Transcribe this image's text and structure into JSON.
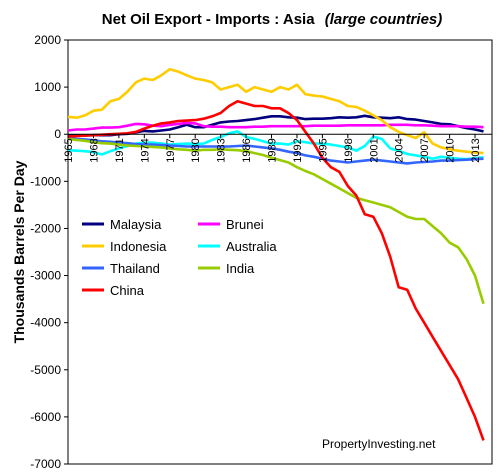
{
  "chart_data": {
    "type": "line",
    "title": "Net Oil Export - Imports : Asia",
    "subtitle": "(large countries)",
    "xlabel": "",
    "ylabel": "Thousands Barrels Per Day",
    "ylim": [
      -7000,
      2000
    ],
    "yticks": [
      2000,
      1000,
      0,
      -1000,
      -2000,
      -3000,
      -4000,
      -5000,
      -6000,
      -7000
    ],
    "xlim": [
      1965,
      2015
    ],
    "xticks": [
      1965,
      1968,
      1971,
      1974,
      1977,
      1980,
      1983,
      1986,
      1989,
      1992,
      1995,
      1998,
      2001,
      2004,
      2007,
      2010,
      2013
    ],
    "grid": false,
    "legend_position": "left, inside plot",
    "annotation": "PropertyInvesting.net",
    "x": [
      1965,
      1966,
      1967,
      1968,
      1969,
      1970,
      1971,
      1972,
      1973,
      1974,
      1975,
      1976,
      1977,
      1978,
      1979,
      1980,
      1981,
      1982,
      1983,
      1984,
      1985,
      1986,
      1987,
      1988,
      1989,
      1990,
      1991,
      1992,
      1993,
      1994,
      1995,
      1996,
      1997,
      1998,
      1999,
      2000,
      2001,
      2002,
      2003,
      2004,
      2005,
      2006,
      2007,
      2008,
      2009,
      2010,
      2011,
      2012,
      2013,
      2014
    ],
    "series": [
      {
        "name": "Malaysia",
        "color": "#00007f",
        "values": [
          -30,
          -30,
          -25,
          -20,
          -20,
          -20,
          0,
          10,
          40,
          70,
          60,
          80,
          100,
          150,
          200,
          150,
          150,
          200,
          250,
          270,
          280,
          300,
          320,
          350,
          380,
          380,
          360,
          350,
          320,
          330,
          330,
          340,
          360,
          350,
          360,
          390,
          360,
          350,
          340,
          360,
          320,
          310,
          280,
          250,
          220,
          210,
          170,
          130,
          100,
          60
        ]
      },
      {
        "name": "Brunei",
        "color": "#ff00ff",
        "values": [
          80,
          100,
          100,
          120,
          140,
          140,
          150,
          180,
          220,
          210,
          180,
          170,
          200,
          220,
          240,
          230,
          170,
          160,
          160,
          150,
          150,
          150,
          160,
          160,
          170,
          170,
          170,
          170,
          170,
          180,
          180,
          180,
          180,
          190,
          190,
          190,
          190,
          190,
          200,
          200,
          200,
          190,
          190,
          180,
          170,
          170,
          170,
          160,
          160,
          150
        ]
      },
      {
        "name": "Indonesia",
        "color": "#ffcc00",
        "values": [
          370,
          350,
          400,
          500,
          520,
          700,
          750,
          900,
          1100,
          1180,
          1150,
          1250,
          1380,
          1330,
          1250,
          1180,
          1150,
          1100,
          950,
          1000,
          1050,
          900,
          1000,
          950,
          900,
          1000,
          950,
          1050,
          850,
          820,
          800,
          750,
          700,
          600,
          580,
          500,
          400,
          300,
          150,
          50,
          -20,
          -80,
          40,
          -200,
          -280,
          -320,
          -350,
          -370,
          -390,
          -400
        ]
      },
      {
        "name": "Australia",
        "color": "#00ffff",
        "values": [
          -340,
          -350,
          -360,
          -380,
          -430,
          -360,
          -300,
          -250,
          -200,
          -180,
          -180,
          -200,
          -220,
          -210,
          -200,
          -210,
          -200,
          -120,
          -60,
          20,
          60,
          -60,
          -100,
          -150,
          -200,
          -200,
          -220,
          -150,
          -170,
          -200,
          -200,
          -220,
          -250,
          -280,
          -350,
          -250,
          -50,
          -100,
          -300,
          -350,
          -420,
          -450,
          -480,
          -520,
          -480,
          -500,
          -520,
          -530,
          -510,
          -490
        ]
      },
      {
        "name": "Thailand",
        "color": "#3366ff",
        "values": [
          -80,
          -100,
          -110,
          -130,
          -150,
          -160,
          -180,
          -190,
          -210,
          -220,
          -220,
          -230,
          -240,
          -250,
          -260,
          -260,
          -260,
          -260,
          -260,
          -260,
          -250,
          -240,
          -260,
          -280,
          -300,
          -330,
          -370,
          -400,
          -450,
          -480,
          -520,
          -560,
          -580,
          -600,
          -580,
          -560,
          -540,
          -560,
          -580,
          -600,
          -620,
          -600,
          -590,
          -580,
          -560,
          -560,
          -550,
          -540,
          -530,
          -520
        ]
      },
      {
        "name": "India",
        "color": "#99cc00",
        "values": [
          -100,
          -120,
          -140,
          -170,
          -190,
          -200,
          -220,
          -240,
          -250,
          -260,
          -270,
          -280,
          -300,
          -320,
          -330,
          -350,
          -330,
          -330,
          -320,
          -330,
          -340,
          -360,
          -400,
          -440,
          -500,
          -550,
          -600,
          -700,
          -780,
          -850,
          -950,
          -1050,
          -1150,
          -1250,
          -1350,
          -1400,
          -1450,
          -1500,
          -1550,
          -1650,
          -1750,
          -1800,
          -1800,
          -1950,
          -2100,
          -2300,
          -2400,
          -2650,
          -3000,
          -3600
        ]
      },
      {
        "name": "China",
        "color": "#ff0000",
        "values": [
          -50,
          -40,
          -30,
          -20,
          -10,
          0,
          10,
          20,
          50,
          120,
          180,
          230,
          250,
          280,
          290,
          300,
          330,
          380,
          450,
          600,
          700,
          650,
          600,
          600,
          550,
          550,
          450,
          300,
          50,
          -200,
          -500,
          -700,
          -800,
          -1100,
          -1300,
          -1700,
          -1750,
          -2100,
          -2600,
          -3250,
          -3300,
          -3700,
          -4000,
          -4300,
          -4600,
          -4900,
          -5200,
          -5600,
          -6000,
          -6500
        ]
      }
    ]
  }
}
